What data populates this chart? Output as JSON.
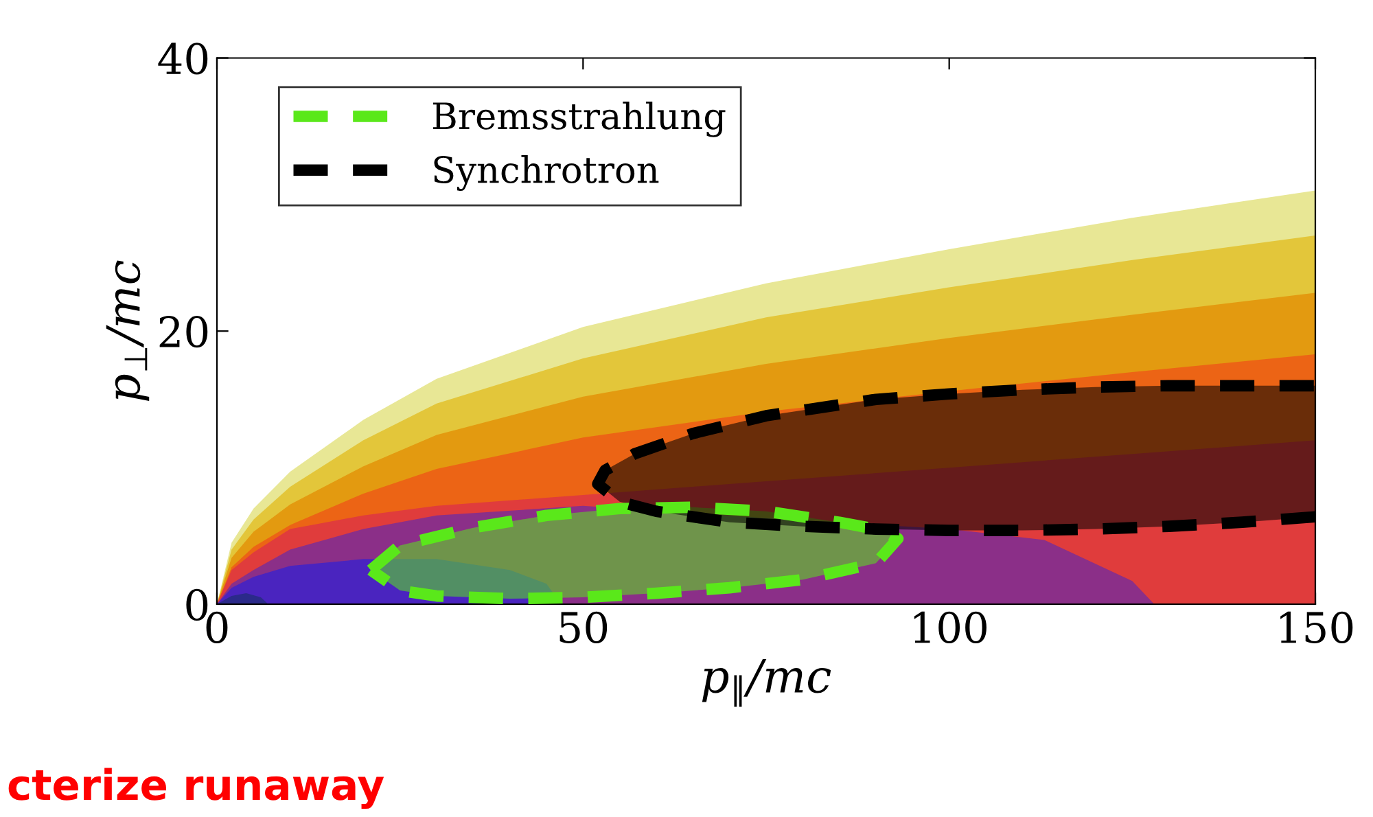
{
  "chart_data": {
    "type": "area",
    "xlabel": "p$_{∥}$/mc",
    "ylabel": "p$_{⊥}$/mc",
    "xlim": [
      0,
      150
    ],
    "ylim": [
      0,
      40
    ],
    "xticks": [
      0,
      50,
      100,
      150
    ],
    "yticks": [
      0,
      20,
      40
    ],
    "grid": false,
    "legend": "top left",
    "annotations": [
      "cterize runaway"
    ],
    "series": [
      {
        "color": "#e8e795",
        "x": [
          0,
          2,
          5,
          10,
          20,
          30,
          50,
          75,
          100,
          125,
          150
        ],
        "values": [
          0,
          4.5,
          7,
          9.7,
          13.5,
          16.5,
          20.3,
          23.5,
          26,
          28.3,
          30.3
        ]
      },
      {
        "color": "#e3c63a",
        "x": [
          0,
          2,
          5,
          10,
          20,
          30,
          50,
          75,
          100,
          125,
          150
        ],
        "values": [
          0,
          4,
          6.2,
          8.6,
          12,
          14.7,
          18,
          21,
          23.2,
          25.2,
          27
        ]
      },
      {
        "color": "#e39a10",
        "x": [
          0,
          2,
          5,
          10,
          20,
          30,
          50,
          75,
          100,
          125,
          150
        ],
        "values": [
          0,
          3.4,
          5.3,
          7.3,
          10.1,
          12.4,
          15.2,
          17.6,
          19.5,
          21.2,
          22.8
        ]
      },
      {
        "color": "#ec6415",
        "x": [
          0,
          2,
          5,
          10,
          20,
          30,
          50,
          75,
          100,
          125,
          150
        ],
        "values": [
          0,
          2.7,
          4.2,
          5.8,
          8.1,
          9.9,
          12.2,
          14.1,
          15.6,
          17,
          18.3
        ]
      },
      {
        "color": "#e03c3c",
        "x": [
          0,
          2,
          5,
          10,
          20,
          30,
          50,
          75,
          100,
          125,
          150
        ],
        "values": [
          0,
          2.5,
          3.8,
          5.5,
          6.5,
          7.2,
          8,
          9,
          10,
          11,
          12
        ]
      },
      {
        "color": "#8b2f88",
        "x": [
          0,
          2,
          5,
          10,
          20,
          30,
          50,
          75,
          100,
          113,
          125,
          128
        ],
        "values": [
          0,
          1.5,
          2.5,
          4,
          5.5,
          6.5,
          7.2,
          6.3,
          5.5,
          4.7,
          1.7,
          0
        ]
      },
      {
        "color": "#4a24bf",
        "x": [
          0,
          2,
          5,
          10,
          20,
          30,
          40,
          45,
          47
        ],
        "values": [
          0,
          1.2,
          2,
          2.8,
          3.3,
          3.3,
          2.5,
          1.5,
          0
        ]
      },
      {
        "color": "#2b2a8a",
        "x": [
          0,
          2,
          4,
          6,
          7
        ],
        "values": [
          0,
          0.6,
          0.8,
          0.5,
          0
        ]
      },
      {
        "name": "Bremsstrahlung",
        "color": "#5ae81a",
        "line_style": "dashed",
        "x": [
          21,
          25,
          35,
          45,
          55,
          65,
          75,
          85,
          91,
          93,
          90,
          80,
          70,
          60,
          50,
          40,
          30,
          25,
          21
        ],
        "values": [
          2.5,
          4.3,
          5.6,
          6.5,
          7.0,
          7.1,
          6.8,
          6.0,
          5.4,
          4.8,
          3.0,
          1.8,
          1.2,
          0.8,
          0.5,
          0.4,
          0.6,
          1.0,
          2.5
        ]
      },
      {
        "name": "Synchrotron",
        "color": "#000000",
        "line_style": "dashed",
        "x": [
          150,
          140,
          130,
          120,
          110,
          100,
          90,
          80,
          70,
          60,
          55,
          52,
          53,
          57,
          65,
          75,
          90,
          100,
          110,
          120,
          130,
          140,
          150
        ],
        "values": [
          6.4,
          6.0,
          5.7,
          5.5,
          5.4,
          5.4,
          5.5,
          5.7,
          6.0,
          6.8,
          7.5,
          8.8,
          9.8,
          11.0,
          12.5,
          13.8,
          15.0,
          15.4,
          15.7,
          15.9,
          16.0,
          16.0,
          16.0
        ]
      }
    ]
  }
}
